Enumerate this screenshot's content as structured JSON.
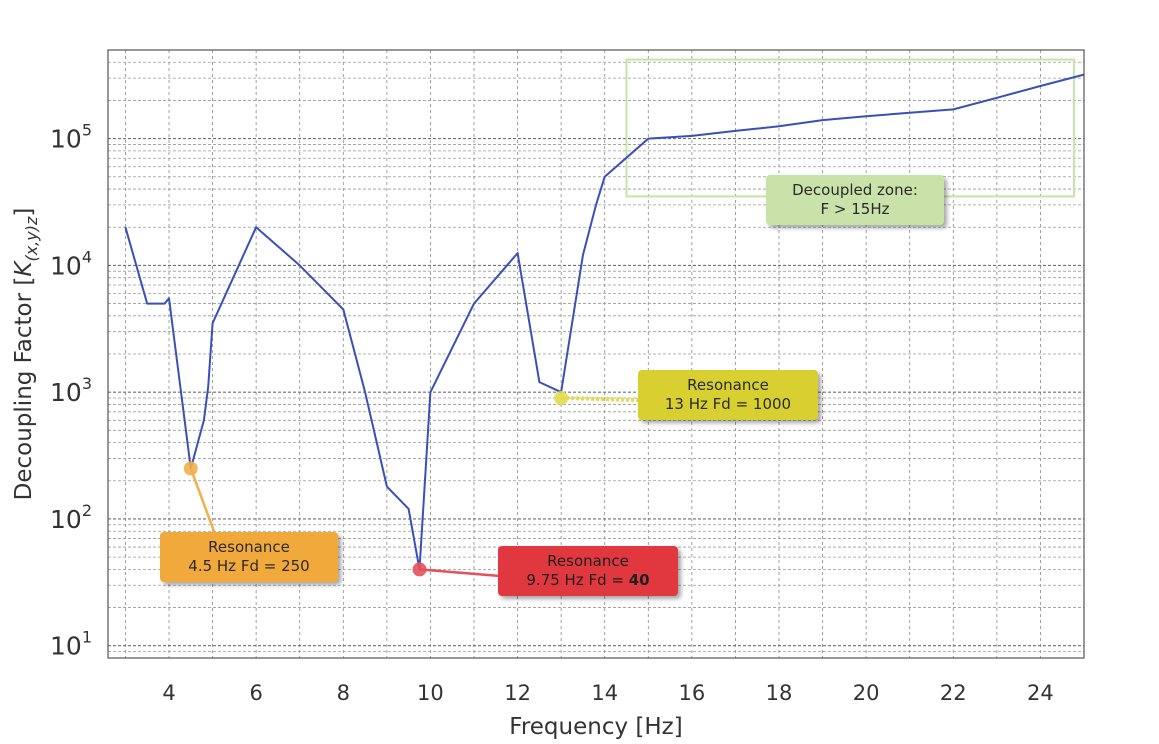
{
  "chart_data": {
    "type": "line",
    "xlabel": "Frequency [Hz]",
    "ylabel": "Decoupling Factor [K(x,y)z]",
    "ylabel_main": "Decoupling Factor [",
    "ylabel_sub": "(x,y)z",
    "ylabel_k": "K",
    "ylabel_end": "]",
    "xlim": [
      2.6,
      25
    ],
    "ylim": [
      8,
      500000
    ],
    "yscale": "log",
    "grid": true,
    "x_ticks": [
      4,
      6,
      8,
      10,
      12,
      14,
      16,
      18,
      20,
      22,
      24
    ],
    "y_ticks": [
      {
        "value": 10,
        "base": "10",
        "exp": "1"
      },
      {
        "value": 100,
        "base": "10",
        "exp": "2"
      },
      {
        "value": 1000,
        "base": "10",
        "exp": "3"
      },
      {
        "value": 10000,
        "base": "10",
        "exp": "4"
      },
      {
        "value": 100000,
        "base": "10",
        "exp": "5"
      }
    ],
    "line_color": "#3b4fb8",
    "series": [
      {
        "x": [
          3.0,
          3.5,
          3.9,
          4.0,
          4.5,
          4.8,
          4.9,
          5.0,
          6.0,
          7.0,
          8.0,
          8.5,
          9.0,
          9.5,
          9.75,
          10.0,
          11.0,
          12.0,
          12.5,
          13.0,
          13.5,
          13.8,
          14.0,
          15.0,
          16.0,
          17.0,
          18.0,
          19.0,
          20.0,
          21.0,
          22.0,
          23.0,
          24.0,
          25.0
        ],
        "y": [
          20000,
          5000,
          5000,
          5500,
          250,
          600,
          1100,
          3500,
          20000,
          10000,
          4500,
          1000,
          180,
          120,
          40,
          1000,
          5000,
          12500,
          1200,
          1000,
          12000,
          30000,
          50000,
          100000,
          105000,
          115000,
          125000,
          140000,
          150000,
          160000,
          170000,
          210000,
          260000,
          320000
        ]
      }
    ],
    "zone": {
      "x": [
        14.5,
        25.0
      ],
      "y": [
        35000,
        420000
      ],
      "color": "#c6e4a6",
      "label_lines": [
        "Decoupled zone:",
        "F > 15Hz"
      ],
      "label_color": "#c8e2a9"
    },
    "annotations": [
      {
        "x": 4.5,
        "y": 250,
        "lines": [
          "Resonance",
          "4.5 Hz Fd = 250"
        ],
        "bold_part": "",
        "color": "#f2a93c",
        "marker_color": "#f0b04a"
      },
      {
        "x": 9.75,
        "y": 40,
        "lines": [
          "Resonance",
          "9.75 Hz Fd = "
        ],
        "bold_part": "40",
        "color": "#e0383e",
        "marker_color": "#e7505a"
      },
      {
        "x": 13.0,
        "y": 900,
        "lines": [
          "Resonance",
          "13 Hz Fd = 1000"
        ],
        "bold_part": "",
        "color": "#d8d030",
        "marker_color": "#e2dc48"
      }
    ]
  }
}
